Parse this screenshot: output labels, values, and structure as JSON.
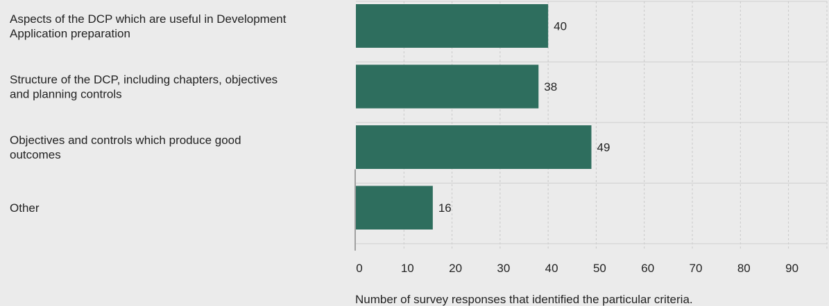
{
  "chart_data": {
    "type": "bar",
    "orientation": "horizontal",
    "categories": [
      [
        "Aspects of the DCP which are useful in Development",
        "Application preparation"
      ],
      [
        "Structure of the DCP, including chapters, objectives",
        "and planning controls"
      ],
      [
        "Objectives and controls which produce good",
        "outcomes"
      ],
      [
        "Other"
      ]
    ],
    "values": [
      40,
      38,
      49,
      16
    ],
    "xlabel": "Number of survey responses that identified the particular criteria.",
    "ylabel": "",
    "title": "",
    "xlim": [
      0,
      98
    ],
    "xticks": [
      0,
      10,
      20,
      30,
      40,
      50,
      60,
      70,
      80,
      90
    ],
    "grid": "vertical dashed",
    "legend": "none",
    "bar_color": "#2e6e5e",
    "background": "#ebebeb"
  }
}
